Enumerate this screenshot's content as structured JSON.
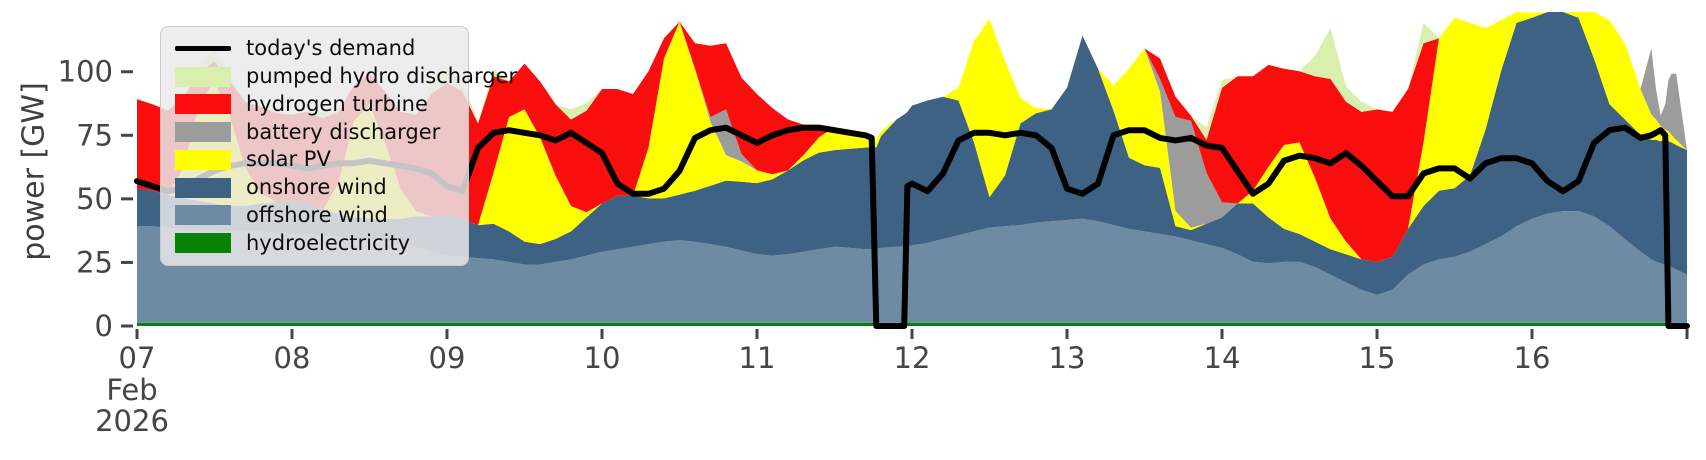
{
  "figure": {
    "background": "#ffffff"
  },
  "axes": {
    "ylabel": "power [GW]",
    "text_color": "#454545",
    "yticks": [
      {
        "v": 0,
        "label": "0"
      },
      {
        "v": 25,
        "label": "25"
      },
      {
        "v": 50,
        "label": "50"
      },
      {
        "v": 75,
        "label": "75"
      },
      {
        "v": 100,
        "label": "100"
      }
    ],
    "xticks": [
      {
        "t": 7,
        "label": "07"
      },
      {
        "t": 8,
        "label": "08"
      },
      {
        "t": 9,
        "label": "09"
      },
      {
        "t": 10,
        "label": "10"
      },
      {
        "t": 11,
        "label": "11"
      },
      {
        "t": 12,
        "label": "12"
      },
      {
        "t": 13,
        "label": "13"
      },
      {
        "t": 14,
        "label": "14"
      },
      {
        "t": 15,
        "label": "15"
      },
      {
        "t": 16,
        "label": "16"
      },
      {
        "t": 17,
        "label": ""
      }
    ],
    "x_sublabel_line1": "Feb",
    "x_sublabel_line2": "2026"
  },
  "legend": {
    "entries": [
      {
        "id": "todays-demand",
        "label": "today's demand",
        "type": "line",
        "color": "#000000"
      },
      {
        "id": "pumped-hydro-discharger",
        "label": "pumped hydro discharger",
        "type": "patch",
        "color": "#d9efad"
      },
      {
        "id": "hydrogen-turbine",
        "label": "hydrogen turbine",
        "type": "patch",
        "color": "#fa0d0d"
      },
      {
        "id": "battery-discharger",
        "label": "battery discharger",
        "type": "patch",
        "color": "#9c9c9c"
      },
      {
        "id": "solar-pv",
        "label": "solar PV",
        "type": "patch",
        "color": "#ffff00"
      },
      {
        "id": "onshore-wind",
        "label": "onshore wind",
        "type": "patch",
        "color": "#3e6283"
      },
      {
        "id": "offshore-wind",
        "label": "offshore wind",
        "type": "patch",
        "color": "#6f8ba3"
      },
      {
        "id": "hydroelectricity",
        "label": "hydroelectricity",
        "type": "patch",
        "color": "#068206"
      }
    ]
  },
  "chart_data": {
    "type": "area",
    "stacked": true,
    "title": "",
    "ylabel": "power [GW]",
    "x_axis": "day of Feb 2026",
    "xlim": [
      7,
      17
    ],
    "ylim": [
      0,
      123.5
    ],
    "legend_position": "upper left",
    "grid": false,
    "x": [
      7.0,
      7.1,
      7.2,
      7.3,
      7.4,
      7.5,
      7.6,
      7.7,
      7.8,
      7.9,
      8.0,
      8.1,
      8.2,
      8.3,
      8.4,
      8.5,
      8.6,
      8.7,
      8.8,
      8.9,
      9.0,
      9.1,
      9.2,
      9.3,
      9.4,
      9.5,
      9.6,
      9.7,
      9.8,
      9.9,
      10.0,
      10.1,
      10.2,
      10.3,
      10.4,
      10.5,
      10.6,
      10.7,
      10.8,
      10.9,
      11.0,
      11.1,
      11.2,
      11.3,
      11.4,
      11.5,
      11.6,
      11.7,
      11.74,
      11.77,
      11.8,
      11.9,
      11.95,
      11.97,
      12.0,
      12.1,
      12.2,
      12.3,
      12.4,
      12.5,
      12.6,
      12.7,
      12.8,
      12.9,
      13.0,
      13.1,
      13.2,
      13.3,
      13.4,
      13.5,
      13.6,
      13.7,
      13.8,
      13.9,
      14.0,
      14.1,
      14.2,
      14.3,
      14.4,
      14.5,
      14.6,
      14.7,
      14.8,
      14.9,
      15.0,
      15.1,
      15.2,
      15.3,
      15.4,
      15.5,
      15.6,
      15.7,
      15.8,
      15.9,
      16.0,
      16.1,
      16.2,
      16.3,
      16.4,
      16.5,
      16.6,
      16.7,
      16.77,
      16.8,
      16.83,
      16.86,
      16.88,
      16.9,
      16.93,
      17.0
    ],
    "series": [
      {
        "id": "hydroelectricity",
        "name": "hydroelectricity",
        "color": "#068206",
        "values": [
          1.2,
          1.2,
          1.2,
          1.2,
          1.2,
          1.2,
          1.2,
          1.2,
          1.2,
          1.2,
          1.2,
          1.2,
          1.2,
          1.2,
          1.2,
          1.2,
          1.2,
          1.2,
          1.2,
          1.2,
          1.2,
          1.2,
          1.2,
          1.2,
          1.2,
          1.2,
          1.2,
          1.2,
          1.2,
          1.2,
          1.2,
          1.2,
          1.2,
          1.2,
          1.2,
          1.2,
          1.2,
          1.2,
          1.2,
          1.2,
          1.2,
          1.2,
          1.2,
          1.2,
          1.2,
          1.2,
          1.2,
          1.2,
          1.2,
          1.2,
          1.2,
          1.2,
          1.2,
          1.2,
          1.2,
          1.2,
          1.2,
          1.2,
          1.2,
          1.2,
          1.2,
          1.2,
          1.2,
          1.2,
          1.2,
          1.2,
          1.2,
          1.2,
          1.2,
          1.2,
          1.2,
          1.2,
          1.2,
          1.2,
          1.2,
          1.2,
          1.2,
          1.2,
          1.2,
          1.2,
          1.2,
          1.2,
          1.2,
          1.2,
          1.2,
          1.2,
          1.2,
          1.2,
          1.2,
          1.2,
          1.2,
          1.2,
          1.2,
          1.2,
          1.2,
          1.2,
          1.2,
          1.2,
          1.2,
          1.2,
          1.2,
          1.2,
          1.2,
          1.2,
          1.2,
          1.2,
          1.2,
          1.2,
          1.2,
          1.2
        ]
      },
      {
        "id": "offshore-wind",
        "name": "offshore wind",
        "color": "#6f8ba3",
        "values": [
          38,
          38,
          37.5,
          37,
          37,
          36.5,
          36,
          36,
          36,
          35.5,
          35,
          35,
          34.5,
          34,
          33.5,
          33,
          32,
          31,
          30,
          28,
          26.5,
          26,
          25.5,
          25,
          24,
          23,
          23,
          24,
          25,
          26.5,
          28,
          29,
          30,
          31,
          32,
          32.5,
          32,
          31,
          30,
          28.5,
          27,
          26.5,
          27,
          28,
          29,
          30,
          29.5,
          29,
          29,
          29,
          29.5,
          30,
          30,
          30,
          30.5,
          31.5,
          33,
          34.5,
          36,
          37.5,
          38,
          38.5,
          39.5,
          40,
          40.5,
          41,
          40,
          38.5,
          37,
          36,
          35,
          34,
          32.5,
          31,
          29.5,
          27,
          24,
          23.5,
          24,
          24,
          22,
          19,
          16,
          13,
          11,
          13,
          19,
          23,
          25,
          26,
          28,
          31,
          34,
          38,
          41,
          43,
          44,
          44,
          42,
          38,
          33,
          28,
          25,
          24,
          23.5,
          23,
          22.5,
          22,
          21,
          19
        ]
      },
      {
        "id": "onshore-wind",
        "name": "onshore wind",
        "color": "#3e6283",
        "values": [
          15,
          14,
          13,
          12,
          11,
          10.5,
          10,
          10,
          11,
          12,
          13,
          12,
          10,
          9,
          8,
          8,
          9,
          10,
          12,
          14,
          16,
          15,
          13,
          14,
          12,
          9,
          8,
          9,
          11,
          15,
          19,
          21,
          20,
          18,
          17,
          18,
          20,
          23,
          26,
          27,
          28,
          30,
          33,
          36,
          38,
          38,
          39,
          40,
          40,
          40,
          44,
          50,
          52,
          53,
          55,
          56,
          56,
          53,
          35,
          12,
          20,
          40,
          43,
          44,
          52,
          72,
          60,
          45,
          28,
          26,
          26,
          4,
          4,
          8,
          12,
          20,
          23,
          18,
          13,
          11,
          10,
          10,
          11,
          12,
          13,
          13,
          18,
          23,
          27,
          27,
          30,
          45,
          65,
          80,
          79,
          80,
          80,
          76,
          62,
          48,
          47,
          46,
          47,
          48,
          48,
          49,
          49,
          49,
          49,
          49
        ]
      },
      {
        "id": "solar-pv",
        "name": "solar PV",
        "color": "#ffff00",
        "values": [
          0,
          0,
          0,
          12,
          38,
          48,
          35,
          15,
          4,
          0,
          0,
          0,
          0,
          12,
          38,
          45,
          30,
          12,
          2,
          0,
          0,
          0,
          0,
          20,
          45,
          52,
          42,
          25,
          10,
          2,
          0,
          0,
          0,
          20,
          55,
          68,
          48,
          25,
          10,
          8,
          5,
          2,
          0,
          2,
          6,
          9,
          7,
          4,
          3,
          3,
          2,
          0,
          0,
          0,
          0,
          0,
          0,
          5,
          40,
          70,
          45,
          10,
          2,
          0,
          0,
          0,
          0,
          10,
          35,
          46,
          30,
          6,
          1,
          0,
          0,
          0,
          5,
          20,
          33,
          36,
          25,
          12,
          5,
          0,
          0,
          0,
          0,
          25,
          60,
          67,
          60,
          40,
          20,
          8,
          2,
          0,
          0,
          5,
          20,
          33,
          30,
          18,
          10,
          8,
          6,
          4,
          4,
          3,
          2,
          0
        ]
      },
      {
        "id": "battery-discharger",
        "name": "battery discharger",
        "color": "#9c9c9c",
        "values": [
          0,
          0,
          0,
          0,
          0,
          0,
          0,
          0,
          0,
          0,
          0,
          0,
          0,
          0,
          0,
          0,
          0,
          0,
          0,
          0,
          0,
          0,
          0,
          0,
          0,
          0,
          0,
          0,
          0,
          0,
          0,
          0,
          0,
          0,
          0,
          0,
          0,
          2,
          18,
          3,
          0,
          0,
          0,
          0,
          0,
          0,
          0,
          0,
          0,
          0,
          0,
          0,
          0,
          0,
          0,
          0,
          0,
          0,
          0,
          0,
          0,
          0,
          0,
          0,
          0,
          0,
          0,
          0,
          0,
          0,
          5,
          37,
          42,
          20,
          6,
          0,
          0,
          0,
          0,
          0,
          0,
          0,
          0,
          0,
          0,
          0,
          0,
          0,
          0,
          0,
          0,
          0,
          0,
          0,
          0,
          0,
          0,
          0,
          0,
          0,
          0,
          0,
          26,
          12,
          4,
          10,
          20,
          24,
          26,
          0
        ]
      },
      {
        "id": "hydrogen-turbine",
        "name": "hydrogen turbine",
        "color": "#fa0d0d",
        "values": [
          35,
          34,
          33,
          28,
          12,
          8,
          14,
          26,
          34,
          35,
          34,
          36,
          36,
          28,
          14,
          12,
          20,
          30,
          38,
          48,
          52,
          50,
          40,
          38,
          14,
          18,
          22,
          28,
          34,
          40,
          45,
          42,
          40,
          30,
          8,
          0,
          10,
          28,
          26,
          30,
          30,
          26,
          20,
          12,
          5,
          0,
          0,
          0,
          0,
          0,
          0,
          0,
          0,
          0,
          0,
          0,
          0,
          0,
          0,
          0,
          0,
          0,
          0,
          0,
          0,
          0,
          0,
          0,
          0,
          0,
          8,
          8,
          2,
          13,
          45,
          50,
          45,
          40,
          30,
          28,
          40,
          55,
          55,
          58,
          60,
          57,
          55,
          39,
          0,
          0,
          0,
          0,
          0,
          0,
          0,
          0,
          0,
          0,
          0,
          0,
          0,
          0,
          0,
          0,
          0,
          0,
          0,
          0,
          0,
          0
        ]
      },
      {
        "id": "pumped-hydro-discharger",
        "name": "pumped hydro discharger",
        "color": "#d9efad",
        "values": [
          0,
          0,
          0,
          0,
          3,
          5,
          2,
          0,
          0,
          0,
          0,
          0,
          3,
          2,
          0,
          0,
          0,
          0,
          0,
          4,
          5,
          4,
          0,
          3,
          0,
          0,
          0,
          0,
          4,
          3,
          0,
          0,
          0,
          0,
          0,
          0,
          0,
          0,
          0,
          0,
          0,
          0,
          0,
          0,
          0,
          0,
          0,
          0,
          0,
          0,
          0,
          0,
          0,
          0,
          0,
          0,
          0,
          0,
          0,
          0,
          0,
          0,
          0,
          0,
          0,
          0,
          0,
          0,
          0,
          0,
          0,
          0,
          0,
          5,
          3,
          0,
          0,
          0,
          0,
          0,
          8,
          20,
          6,
          4,
          0,
          0,
          0,
          8,
          0,
          0,
          0,
          0,
          0,
          0,
          0,
          0,
          0,
          0,
          0,
          0,
          0,
          0,
          0,
          0,
          0,
          0,
          0,
          0,
          0,
          0
        ]
      }
    ],
    "demand_line": {
      "id": "todays-demand",
      "name": "today's demand",
      "color": "#000000",
      "values": [
        57,
        55,
        53,
        54,
        58,
        61,
        63,
        64,
        64,
        64,
        63,
        62,
        63,
        64,
        64,
        65,
        64,
        63,
        62,
        60,
        55,
        53,
        70,
        76,
        77,
        76,
        75,
        73,
        76,
        72,
        68,
        56,
        52,
        52,
        54,
        61,
        74,
        77,
        78,
        75,
        72,
        75,
        77,
        78,
        78,
        77,
        76,
        75,
        74,
        0,
        0,
        0,
        0,
        55,
        56,
        53,
        60,
        73,
        76,
        76,
        75,
        76,
        75,
        70,
        54,
        52,
        56,
        75,
        77,
        77,
        74,
        73,
        74,
        71,
        70,
        61,
        52,
        56,
        65,
        67,
        66,
        64,
        68,
        63,
        57,
        51,
        51,
        60,
        62,
        62,
        58,
        64,
        66,
        66,
        64,
        57,
        53,
        57,
        72,
        77,
        78,
        74,
        75,
        76,
        77,
        75,
        0,
        0,
        0,
        0
      ]
    }
  }
}
